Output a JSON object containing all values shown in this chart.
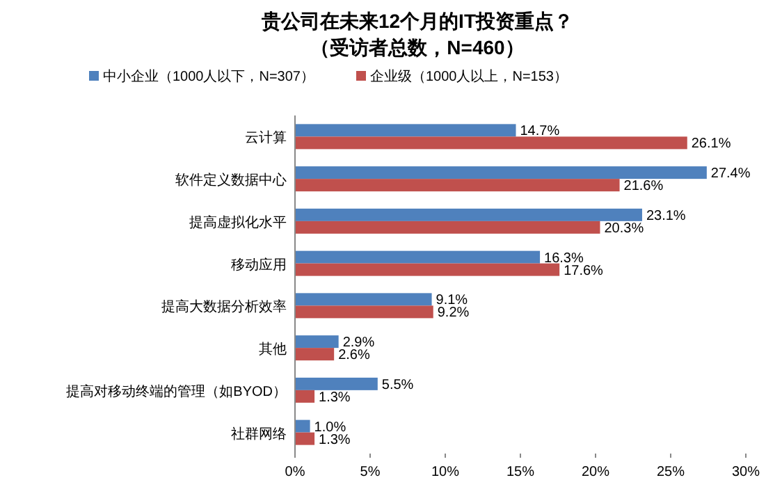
{
  "chart_data": {
    "type": "bar",
    "orientation": "horizontal",
    "title": "贵公司在未来12个月的IT投资重点？",
    "subtitle": "（受访者总数，N=460）",
    "categories": [
      "云计算",
      "软件定义数据中心",
      "提高虚拟化水平",
      "移动应用",
      "提高大数据分析效率",
      "其他",
      "提高对移动终端的管理（如BYOD）",
      "社群网络"
    ],
    "series": [
      {
        "name": "中小企业（1000人以下，N=307）",
        "color": "#4f81bd",
        "values": [
          14.7,
          27.4,
          23.1,
          16.3,
          9.1,
          2.9,
          5.5,
          1.0
        ],
        "value_labels": [
          "14.7%",
          "27.4%",
          "23.1%",
          "16.3%",
          "9.1%",
          "2.9%",
          "5.5%",
          "1.0%"
        ]
      },
      {
        "name": "企业级（1000人以上，N=153）",
        "color": "#c0504d",
        "values": [
          26.1,
          21.6,
          20.3,
          17.6,
          9.2,
          2.6,
          1.3,
          1.3
        ],
        "value_labels": [
          "26.1%",
          "21.6%",
          "20.3%",
          "17.6%",
          "9.2%",
          "2.6%",
          "1.3%",
          "1.3%"
        ]
      }
    ],
    "xlim": [
      0,
      30
    ],
    "xticks": [
      {
        "value": 0,
        "label": "0%"
      },
      {
        "value": 5,
        "label": "5%"
      },
      {
        "value": 10,
        "label": "10%"
      },
      {
        "value": 15,
        "label": "15%"
      },
      {
        "value": 20,
        "label": "20%"
      },
      {
        "value": 25,
        "label": "25%"
      },
      {
        "value": 30,
        "label": "30%"
      }
    ],
    "legend": "top left",
    "grid": false
  }
}
